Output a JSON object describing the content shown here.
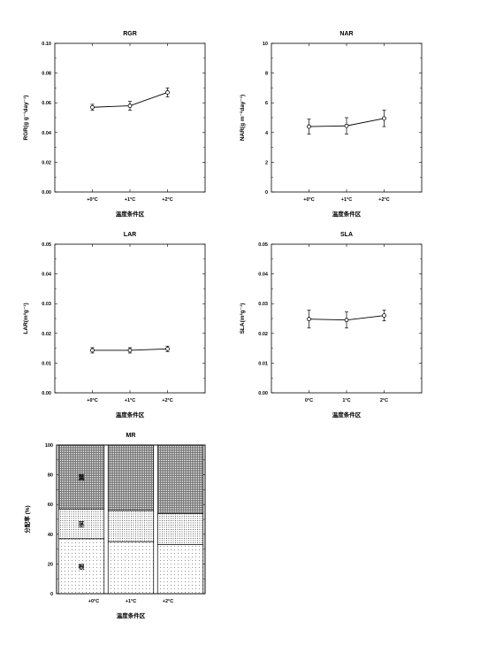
{
  "chart_data": [
    {
      "type": "line",
      "title": "RGR",
      "xlabel": "温度条件区",
      "ylabel": "RGR(g g⁻¹day⁻¹)",
      "categories": [
        "+0°C",
        "+1°C",
        "+2°C"
      ],
      "ylim": [
        0,
        0.1
      ],
      "yticks": [
        "0.00",
        "0.02",
        "0.04",
        "0.06",
        "0.08",
        "0.10"
      ],
      "values": [
        0.057,
        0.058,
        0.067
      ],
      "errors": [
        0.002,
        0.003,
        0.003
      ],
      "grid": false
    },
    {
      "type": "line",
      "title": "NAR",
      "xlabel": "温度条件区",
      "ylabel": "NAR(g m⁻²day⁻¹)",
      "categories": [
        "+0°C",
        "+1°C",
        "+2°C"
      ],
      "ylim": [
        0,
        10
      ],
      "yticks": [
        "0",
        "2",
        "4",
        "6",
        "8",
        "10"
      ],
      "values": [
        4.4,
        4.45,
        4.95
      ],
      "errors": [
        0.5,
        0.55,
        0.55
      ],
      "grid": false
    },
    {
      "type": "line",
      "title": "LAR",
      "xlabel": "温度条件区",
      "ylabel": "LAR(m²g⁻¹)",
      "categories": [
        "+0°C",
        "+1°C",
        "+2°C"
      ],
      "ylim": [
        0,
        0.05
      ],
      "yticks": [
        "0.00",
        "0.01",
        "0.02",
        "0.03",
        "0.04",
        "0.05"
      ],
      "values": [
        0.0143,
        0.0143,
        0.0148
      ],
      "errors": [
        0.0009,
        0.0009,
        0.0009
      ],
      "grid": false
    },
    {
      "type": "line",
      "title": "SLA",
      "xlabel": "温度条件区",
      "ylabel": "SLA(m²g⁻¹)",
      "categories": [
        "0°C",
        "1°C",
        "2°C"
      ],
      "ylim": [
        0,
        0.05
      ],
      "yticks": [
        "0.00",
        "0.01",
        "0.02",
        "0.03",
        "0.04",
        "0.05"
      ],
      "values": [
        0.0248,
        0.0245,
        0.026
      ],
      "errors": [
        0.003,
        0.0027,
        0.0018
      ],
      "grid": false
    },
    {
      "type": "bar",
      "stacked": true,
      "title": "MR",
      "xlabel": "温度条件区",
      "ylabel": "分配率 (%)",
      "categories": [
        "+0°C",
        "+1°C",
        "+2°C"
      ],
      "ylim": [
        0,
        100
      ],
      "yticks": [
        "0",
        "20",
        "40",
        "60",
        "80",
        "100"
      ],
      "series": [
        {
          "name": "根",
          "values": [
            37,
            35,
            33
          ],
          "pattern": "sparse-dots"
        },
        {
          "name": "茎",
          "values": [
            20,
            21,
            21
          ],
          "pattern": "medium-dots"
        },
        {
          "name": "葉",
          "values": [
            43,
            44,
            46
          ],
          "pattern": "dense-dots"
        }
      ],
      "labels_shown_in_first_bar": [
        "根",
        "茎",
        "葉"
      ]
    }
  ]
}
